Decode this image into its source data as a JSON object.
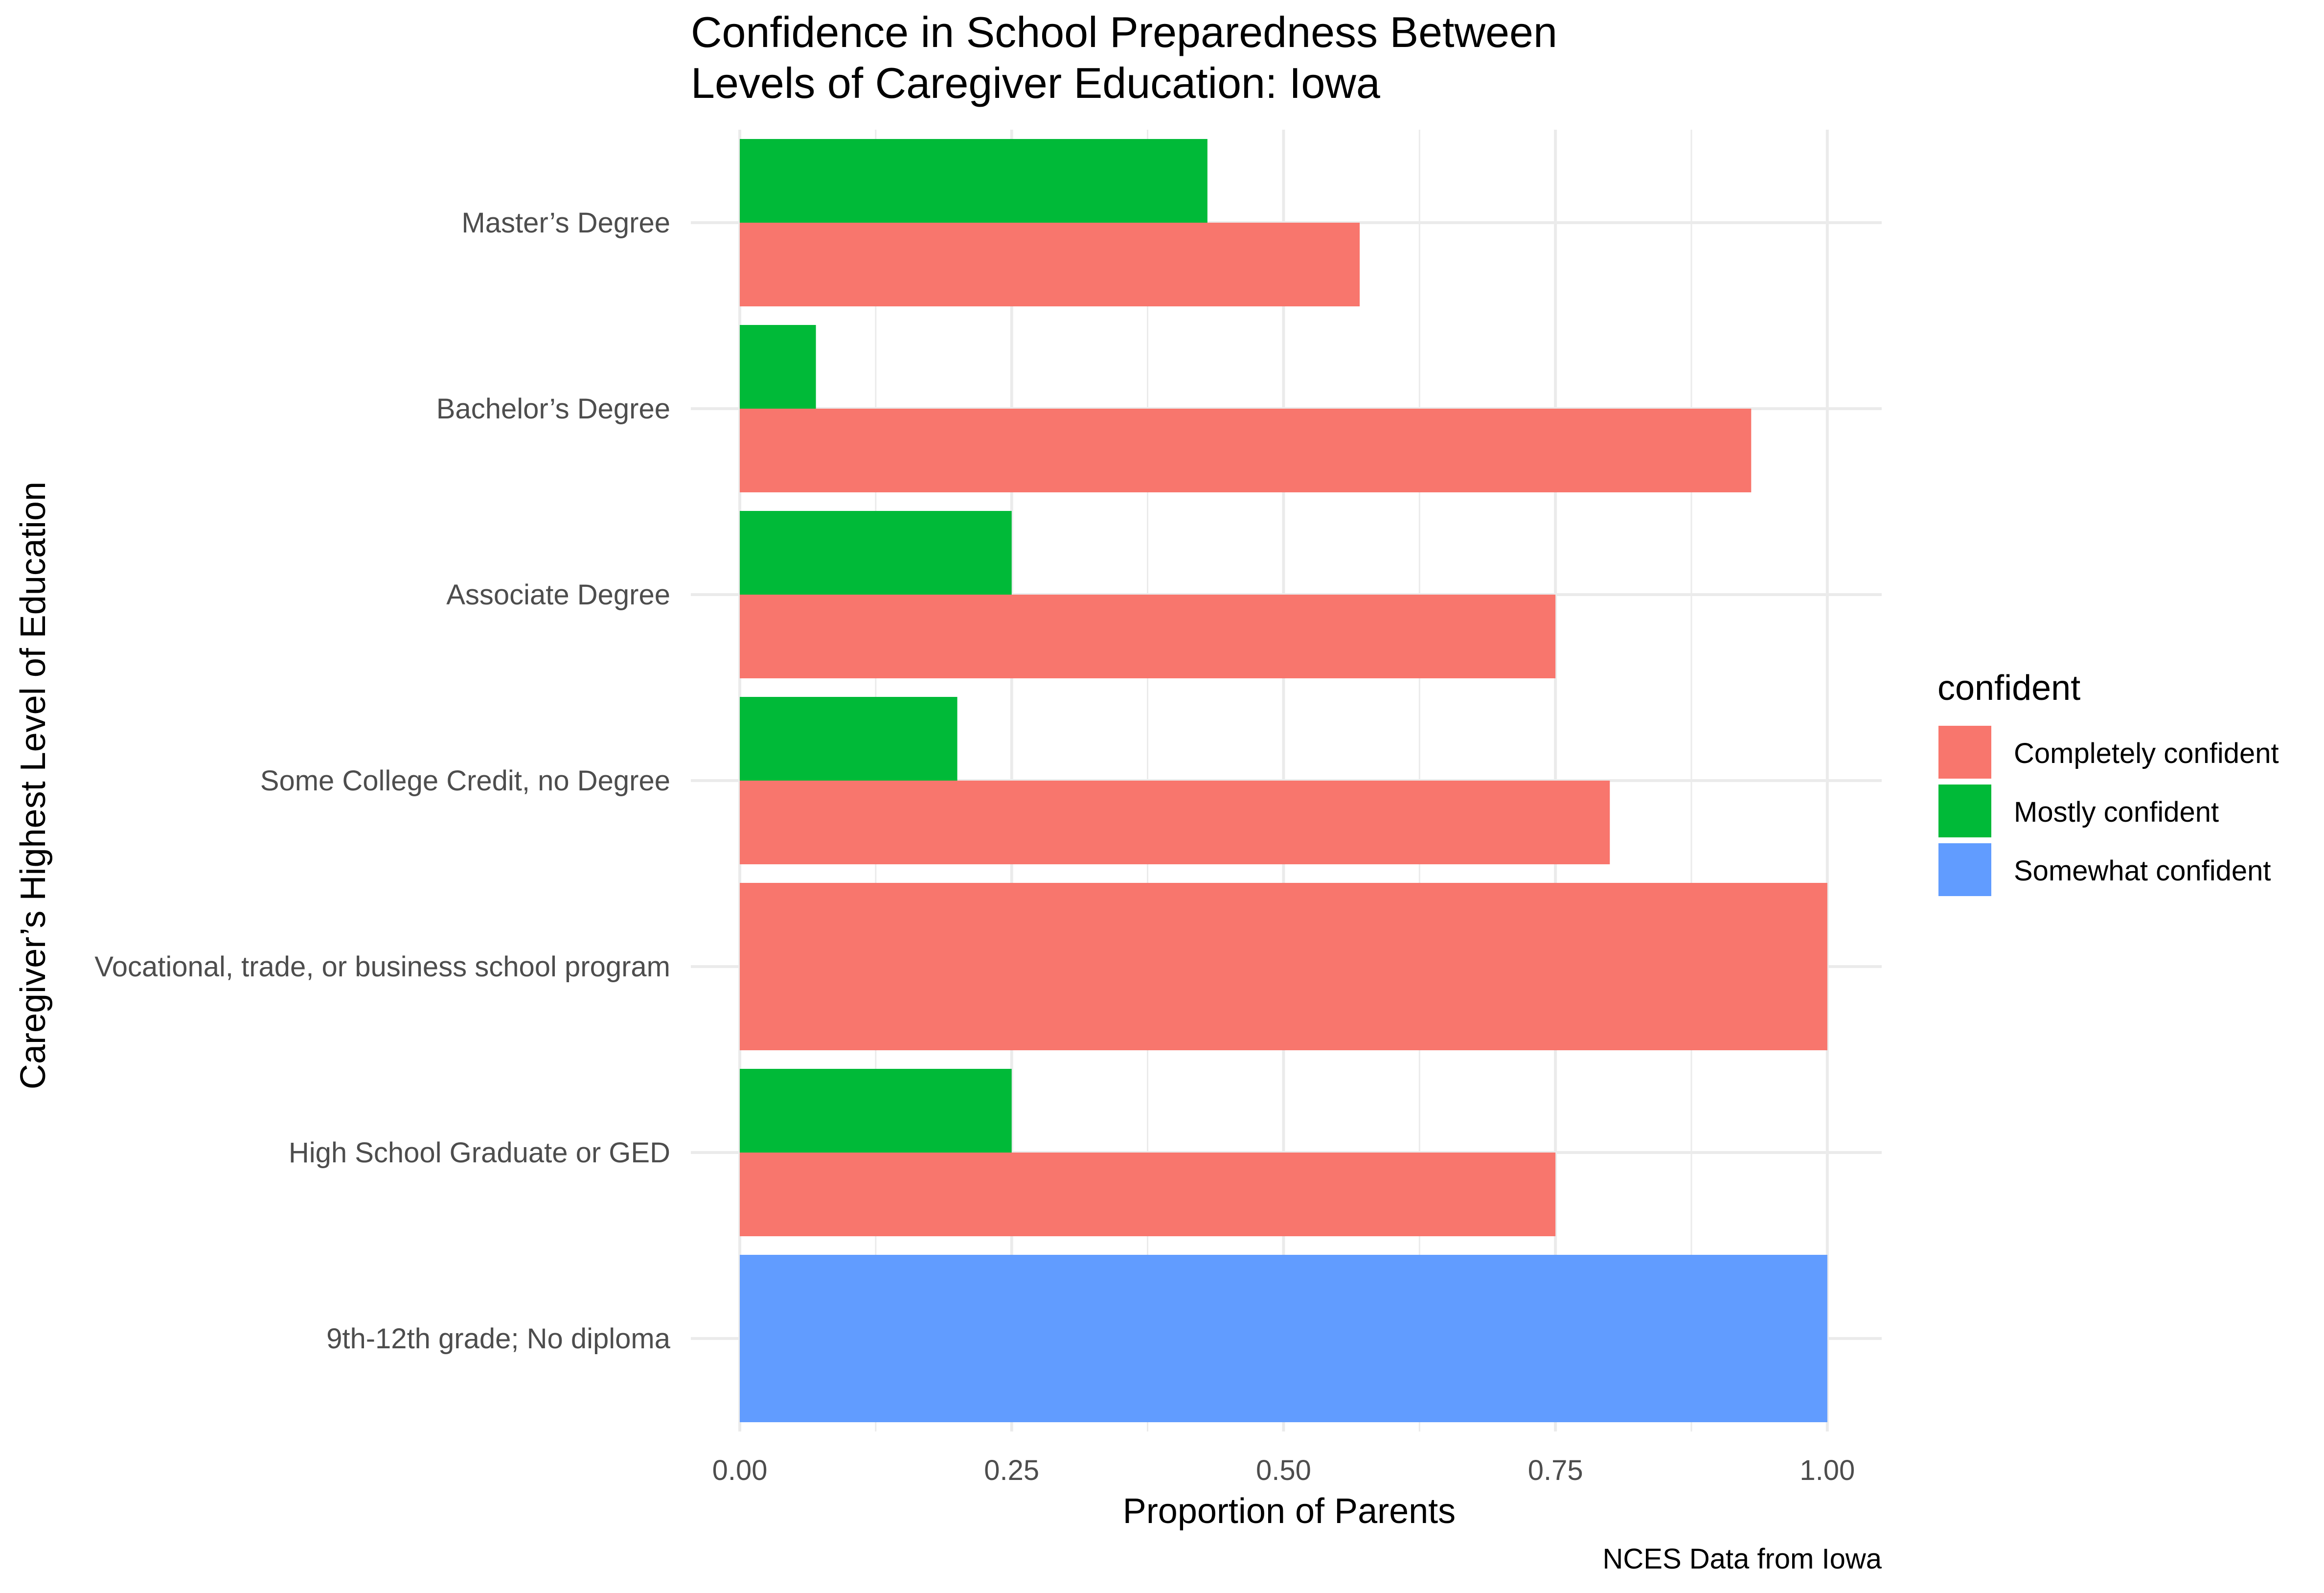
{
  "chart_data": {
    "type": "bar",
    "orientation": "horizontal",
    "title": "Confidence in School Preparedness Between\nLevels of Caregiver Education: Iowa",
    "xlabel": "Proportion of Parents",
    "ylabel": "Caregiver’s Highest Level of Education",
    "caption": "NCES Data from Iowa",
    "xlim": [
      0,
      1.05
    ],
    "x_ticks": [
      "0.00",
      "0.25",
      "0.50",
      "0.75",
      "1.00"
    ],
    "x_tick_values": [
      0,
      0.25,
      0.5,
      0.75,
      1.0
    ],
    "grid": true,
    "legend_title": "confident",
    "legend_position": "right",
    "categories": [
      "9th-12th grade; No diploma",
      "High School Graduate or GED",
      "Vocational, trade, or business school program",
      "Some College Credit, no Degree",
      "Associate Degree",
      "Bachelor’s Degree",
      "Master’s Degree"
    ],
    "series": [
      {
        "name": "Completely confident",
        "color": "#F8766D",
        "values": [
          null,
          0.75,
          1.0,
          0.8,
          0.75,
          0.93,
          0.57
        ]
      },
      {
        "name": "Mostly confident",
        "color": "#00BA38",
        "values": [
          null,
          0.25,
          null,
          0.2,
          0.25,
          0.07,
          0.43
        ]
      },
      {
        "name": "Somewhat confident",
        "color": "#619CFF",
        "values": [
          1.0,
          null,
          null,
          null,
          null,
          null,
          null
        ]
      }
    ]
  }
}
